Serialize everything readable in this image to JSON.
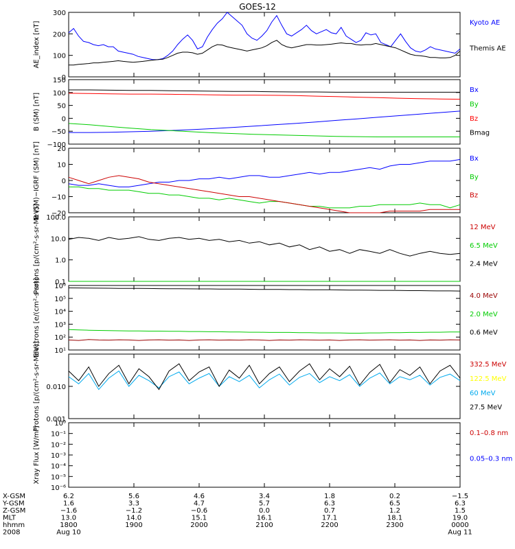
{
  "title": "GOES-12",
  "chart_data": [
    {
      "type": "line",
      "ylabel": "AE_index [nT]",
      "ylim": [
        0,
        300
      ],
      "yticks": [
        0,
        100,
        200,
        300
      ],
      "yticklabels": [
        "0",
        "100",
        "200",
        "300"
      ],
      "series": [
        {
          "name": "Kyoto AE",
          "color": "#0000ff",
          "values": [
            205,
            225,
            190,
            165,
            160,
            150,
            145,
            150,
            140,
            140,
            120,
            115,
            110,
            105,
            95,
            90,
            85,
            80,
            80,
            85,
            100,
            120,
            150,
            175,
            195,
            170,
            130,
            140,
            185,
            220,
            250,
            270,
            300,
            280,
            260,
            240,
            200,
            180,
            170,
            190,
            215,
            255,
            285,
            240,
            200,
            190,
            205,
            220,
            240,
            215,
            200,
            210,
            220,
            205,
            200,
            230,
            190,
            175,
            160,
            170,
            205,
            195,
            200,
            160,
            150,
            140,
            170,
            200,
            165,
            135,
            120,
            115,
            125,
            140,
            130,
            125,
            120,
            115,
            110,
            130
          ]
        },
        {
          "name": "Themis AE",
          "color": "#000000",
          "values": [
            55,
            55,
            58,
            60,
            62,
            65,
            65,
            68,
            70,
            72,
            75,
            72,
            70,
            68,
            70,
            72,
            75,
            78,
            80,
            82,
            90,
            100,
            110,
            115,
            115,
            112,
            105,
            110,
            125,
            140,
            150,
            148,
            140,
            135,
            130,
            125,
            120,
            125,
            130,
            135,
            145,
            160,
            170,
            150,
            140,
            135,
            140,
            145,
            150,
            150,
            148,
            148,
            150,
            152,
            155,
            158,
            155,
            155,
            150,
            148,
            150,
            150,
            155,
            150,
            145,
            140,
            135,
            125,
            115,
            105,
            100,
            98,
            95,
            90,
            90,
            88,
            88,
            90,
            100,
            120
          ]
        }
      ]
    },
    {
      "type": "line",
      "ylabel": "B (SM) [nT]",
      "ylim": [
        -100,
        150
      ],
      "yticks": [
        -100,
        -50,
        0,
        50,
        100,
        150
      ],
      "yticklabels": [
        "−100",
        "−50",
        "0",
        "50",
        "100",
        "150"
      ],
      "series": [
        {
          "name": "Bx",
          "color": "#0000ff",
          "values": [
            -55,
            -55,
            -54,
            -52,
            -50,
            -47,
            -44,
            -40,
            -35,
            -30,
            -25,
            -20,
            -14,
            -8,
            -2,
            4,
            10,
            16,
            22,
            28
          ]
        },
        {
          "name": "By",
          "color": "#00cc00",
          "values": [
            -20,
            -25,
            -32,
            -38,
            -44,
            -48,
            -52,
            -56,
            -59,
            -62,
            -64,
            -66,
            -68,
            -70,
            -71,
            -72,
            -72,
            -72,
            -72,
            -72
          ]
        },
        {
          "name": "Bz",
          "color": "#ff0000",
          "values": [
            97,
            96,
            95,
            94,
            94,
            93,
            92,
            91,
            90,
            90,
            89,
            88,
            86,
            84,
            82,
            80,
            78,
            76,
            75,
            74
          ]
        },
        {
          "name": "Bmag",
          "color": "#000000",
          "values": [
            110,
            110,
            109,
            108,
            108,
            107,
            106,
            105,
            104,
            104,
            103,
            102,
            102,
            101,
            101,
            101,
            101,
            101,
            101,
            101
          ]
        }
      ]
    },
    {
      "type": "line",
      "ylabel": "B (SM)−IGRF (SM) [nT]",
      "ylim": [
        -20,
        20
      ],
      "yticks": [
        -20,
        -10,
        0,
        10,
        20
      ],
      "yticklabels": [
        "−20",
        "−10",
        "0",
        "10",
        "20"
      ],
      "series": [
        {
          "name": "Bx",
          "color": "#0000ff",
          "values": [
            -2,
            -3,
            -3,
            -2,
            -3,
            -4,
            -4,
            -3,
            -2,
            -1,
            -1,
            0,
            0,
            1,
            1,
            2,
            1,
            2,
            3,
            3,
            2,
            2,
            3,
            4,
            5,
            4,
            5,
            5,
            6,
            7,
            8,
            7,
            9,
            10,
            10,
            11,
            12,
            12,
            12,
            13
          ]
        },
        {
          "name": "By",
          "color": "#00cc00",
          "values": [
            -4,
            -4,
            -5,
            -5,
            -6,
            -6,
            -6,
            -7,
            -8,
            -8,
            -9,
            -9,
            -10,
            -11,
            -11,
            -12,
            -11,
            -12,
            -13,
            -14,
            -13,
            -13,
            -14,
            -15,
            -16,
            -16,
            -17,
            -17,
            -17,
            -16,
            -16,
            -15,
            -15,
            -15,
            -15,
            -14,
            -15,
            -15,
            -17,
            -15
          ]
        },
        {
          "name": "Bz",
          "color": "#cc0000",
          "values": [
            2,
            0,
            -2,
            0,
            2,
            3,
            2,
            1,
            -1,
            -2,
            -3,
            -4,
            -5,
            -6,
            -7,
            -8,
            -9,
            -10,
            -10,
            -11,
            -12,
            -13,
            -14,
            -15,
            -16,
            -17,
            -18,
            -19,
            -20,
            -20,
            -20,
            -20,
            -19,
            -19,
            -19,
            -19,
            -18,
            -18,
            -18,
            -18
          ]
        }
      ]
    },
    {
      "type": "line",
      "log": true,
      "ylabel": "Protons [p/(cm²-s-sr-MeV)]",
      "ylim": [
        0.1,
        100
      ],
      "yticks": [
        0.1,
        1,
        10,
        100
      ],
      "yticklabels": [
        "0.1",
        "1.0",
        "10.0",
        "100.0"
      ],
      "series": [
        {
          "name": "12 MeV",
          "color": "#cc0000",
          "values": [
            0.1,
            0.1,
            0.1,
            0.1,
            0.1,
            0.1,
            0.1,
            0.1,
            0.1,
            0.1,
            0.1,
            0.1,
            0.1,
            0.1,
            0.1,
            0.1,
            0.1,
            0.1,
            0.1,
            0.1,
            0.1,
            0.1,
            0.1,
            0.1,
            0.1,
            0.1,
            0.1,
            0.1,
            0.1,
            0.1,
            0.1,
            0.1,
            0.1,
            0.1,
            0.1,
            0.1,
            0.1,
            0.1,
            0.1,
            0.1
          ]
        },
        {
          "name": "6.5 MeV",
          "color": "#00cc00",
          "values": [
            0.1,
            0.1,
            0.1,
            0.1,
            0.1,
            0.1,
            0.1,
            0.1,
            0.1,
            0.1,
            0.1,
            0.1,
            0.1,
            0.1,
            0.1,
            0.1,
            0.1,
            0.1,
            0.1,
            0.1,
            0.1,
            0.1,
            0.1,
            0.1,
            0.1,
            0.1,
            0.1,
            0.1,
            0.1,
            0.1,
            0.1,
            0.1,
            0.1,
            0.1,
            0.1,
            0.1,
            0.1,
            0.1,
            0.1,
            0.1
          ]
        },
        {
          "name": "2.4 MeV",
          "color": "#000000",
          "values": [
            9,
            11,
            10,
            8,
            11,
            9,
            10,
            12,
            9,
            8,
            10,
            11,
            9,
            10,
            8,
            9,
            7,
            8,
            6,
            7,
            5,
            6,
            4,
            5,
            3,
            4,
            2.5,
            3,
            2,
            3,
            2.5,
            2,
            3,
            2,
            1.5,
            2,
            2.5,
            2,
            1.8,
            2
          ]
        }
      ]
    },
    {
      "type": "line",
      "log": true,
      "ylabel": "Electrons [e/(cm²-s-sr)]",
      "ylim": [
        10,
        1000000
      ],
      "yticks": [
        10,
        100,
        1000,
        10000,
        100000,
        1000000
      ],
      "yticklabels": [
        "10¹",
        "10²",
        "10³",
        "10⁴",
        "10⁵",
        "10⁶"
      ],
      "series": [
        {
          "name": "4.0 MeV",
          "color": "#990000",
          "values": [
            60,
            55,
            65,
            60,
            58,
            62,
            60,
            55,
            60,
            62,
            58,
            60,
            55,
            60,
            62,
            58,
            60,
            58,
            62,
            60,
            55,
            60,
            58,
            62,
            60,
            58,
            60,
            55,
            60,
            62,
            58,
            60,
            62,
            58,
            60,
            55,
            60,
            58,
            62,
            60
          ]
        },
        {
          "name": "2.0 MeV",
          "color": "#00cc00",
          "values": [
            380,
            360,
            340,
            330,
            320,
            310,
            300,
            300,
            290,
            290,
            280,
            280,
            270,
            270,
            260,
            260,
            250,
            250,
            240,
            240,
            230,
            230,
            230,
            220,
            220,
            210,
            210,
            210,
            200,
            200,
            210,
            210,
            220,
            220,
            230,
            230,
            240,
            240,
            250,
            250
          ]
        },
        {
          "name": "0.6 MeV",
          "color": "#000000",
          "values": [
            650000,
            640000,
            630000,
            620000,
            610000,
            600000,
            600000,
            590000,
            580000,
            570000,
            560000,
            560000,
            550000,
            540000,
            540000,
            530000,
            520000,
            520000,
            510000,
            500000,
            500000,
            490000,
            480000,
            480000,
            470000,
            460000,
            460000,
            450000,
            440000,
            440000,
            430000,
            420000,
            420000,
            410000,
            400000,
            400000,
            390000,
            380000,
            380000,
            370000
          ]
        }
      ]
    },
    {
      "type": "line",
      "log": true,
      "ylabel": "Protons [p/(cm²-s-sr-MeV)]",
      "ylim": [
        0.001,
        0.1
      ],
      "yticks": [
        0.001,
        0.01
      ],
      "yticklabels": [
        "0.001",
        "0.010"
      ],
      "series": [
        {
          "name": "332.5 MeV",
          "color": "#cc0000",
          "values": []
        },
        {
          "name": "122.5 MeV",
          "color": "#ffff00",
          "values": []
        },
        {
          "name": "60 MeV",
          "color": "#00aaee",
          "values": [
            0.02,
            0.012,
            0.025,
            0.008,
            0.018,
            0.03,
            0.01,
            0.022,
            0.015,
            0.009,
            0.02,
            0.028,
            0.012,
            0.018,
            0.025,
            0.01,
            0.02,
            0.014,
            0.022,
            0.009,
            0.016,
            0.024,
            0.011,
            0.019,
            0.025,
            0.013,
            0.02,
            0.015,
            0.023,
            0.01,
            0.018,
            0.026,
            0.012,
            0.02,
            0.016,
            0.022,
            0.011,
            0.019,
            0.024,
            0.015
          ]
        },
        {
          "name": "27.5 MeV",
          "color": "#000000",
          "values": [
            0.03,
            0.015,
            0.04,
            0.01,
            0.025,
            0.045,
            0.012,
            0.035,
            0.02,
            0.008,
            0.03,
            0.05,
            0.015,
            0.028,
            0.04,
            0.01,
            0.032,
            0.018,
            0.045,
            0.012,
            0.025,
            0.04,
            0.014,
            0.03,
            0.05,
            0.016,
            0.035,
            0.02,
            0.042,
            0.011,
            0.027,
            0.048,
            0.013,
            0.033,
            0.022,
            0.04,
            0.012,
            0.03,
            0.045,
            0.018
          ]
        }
      ]
    },
    {
      "type": "line",
      "log": true,
      "ylabel": "Xray Flux [W/m²]",
      "ylim": [
        1e-06,
        1
      ],
      "yticks": [
        1e-06,
        1e-05,
        0.0001,
        0.001,
        0.01,
        0.1,
        1
      ],
      "yticklabels": [
        "10⁻⁶",
        "10⁻⁵",
        "10⁻⁴",
        "10⁻³",
        "10⁻²",
        "10⁻¹",
        "10⁰"
      ],
      "series": [
        {
          "name": "0.1–0.8 nm",
          "color": "#cc0000",
          "values": []
        },
        {
          "name": "0.05–0.3 nm",
          "color": "#0000ff",
          "values": []
        }
      ]
    }
  ],
  "footer": {
    "labels": [
      "X-GSM",
      "Y-GSM",
      "Z-GSM",
      "MLT",
      "hhmm",
      "2008"
    ],
    "columns": [
      [
        "6.2",
        "1.6",
        "−1.6",
        "13.0",
        "1800",
        "Aug 10"
      ],
      [
        "5.6",
        "3.3",
        "−1.2",
        "14.0",
        "1900",
        ""
      ],
      [
        "4.6",
        "4.7",
        "−0.6",
        "15.1",
        "2000",
        ""
      ],
      [
        "3.4",
        "5.7",
        "0.0",
        "16.1",
        "2100",
        ""
      ],
      [
        "1.8",
        "6.3",
        "0.7",
        "17.1",
        "2200",
        ""
      ],
      [
        "0.2",
        "6.5",
        "1.2",
        "18.1",
        "2300",
        ""
      ],
      [
        "−1.5",
        "6.3",
        "1.5",
        "19.0",
        "0000",
        "Aug 11"
      ]
    ]
  }
}
